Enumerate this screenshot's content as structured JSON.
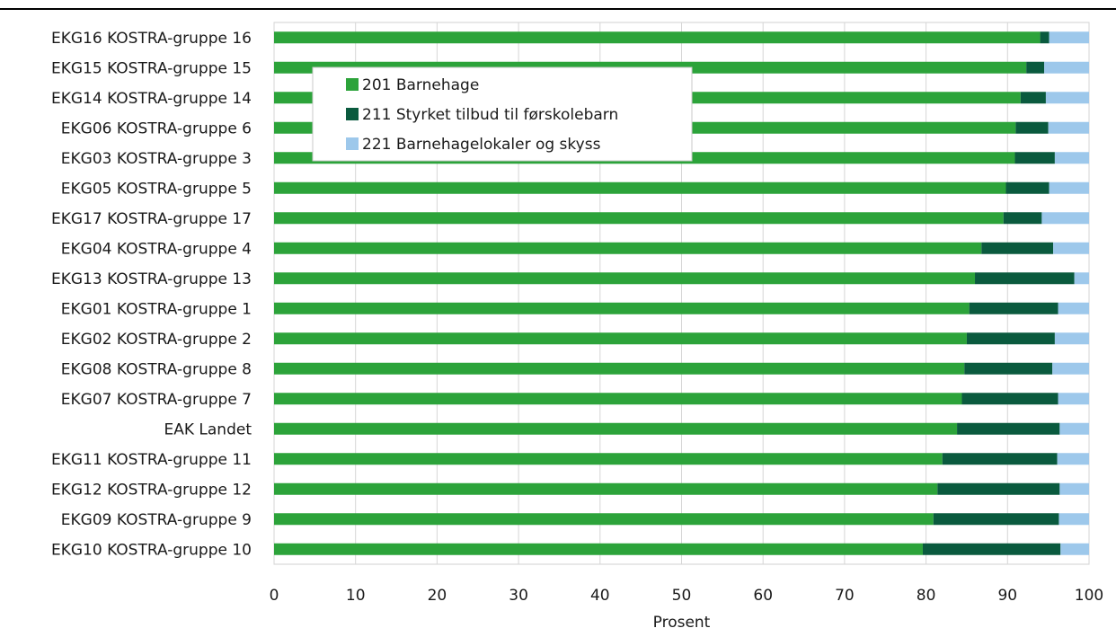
{
  "chart_data": {
    "type": "bar",
    "orientation": "horizontal",
    "stacked": true,
    "title": "",
    "xlabel": "Prosent",
    "ylabel": "",
    "xlim": [
      0,
      100
    ],
    "xticks": [
      0,
      10,
      20,
      30,
      40,
      50,
      60,
      70,
      80,
      90,
      100
    ],
    "grid": "vertical",
    "legend_position": "top-left",
    "categories": [
      "EKG16 KOSTRA-gruppe 16",
      "EKG15 KOSTRA-gruppe 15",
      "EKG14 KOSTRA-gruppe 14",
      "EKG06 KOSTRA-gruppe 6",
      "EKG03 KOSTRA-gruppe 3",
      "EKG05 KOSTRA-gruppe 5",
      "EKG17 KOSTRA-gruppe 17",
      "EKG04 KOSTRA-gruppe 4",
      "EKG13 KOSTRA-gruppe 13",
      "EKG01 KOSTRA-gruppe 1",
      "EKG02 KOSTRA-gruppe 2",
      "EKG08 KOSTRA-gruppe 8",
      "EKG07 KOSTRA-gruppe 7",
      "EAK Landet",
      "EKG11 KOSTRA-gruppe 11",
      "EKG12 KOSTRA-gruppe 12",
      "EKG09 KOSTRA-gruppe 9",
      "EKG10 KOSTRA-gruppe 10"
    ],
    "series": [
      {
        "name": "201 Barnehage",
        "color": "#2ca33a",
        "values": [
          94.0,
          92.3,
          91.6,
          91.0,
          90.9,
          89.8,
          89.5,
          86.8,
          86.0,
          85.3,
          85.0,
          84.7,
          84.4,
          83.8,
          82.0,
          81.4,
          80.9,
          79.6
        ]
      },
      {
        "name": "211 Styrket tilbud til førskolebarn",
        "color": "#0a5a3e",
        "values": [
          1.1,
          2.2,
          3.1,
          4.0,
          4.9,
          5.3,
          4.7,
          8.8,
          12.2,
          10.9,
          10.8,
          10.8,
          11.8,
          12.6,
          14.1,
          15.0,
          15.4,
          16.9
        ]
      },
      {
        "name": "221 Barnehagelokaler og skyss",
        "color": "#9dc8eb",
        "values": [
          4.9,
          5.5,
          5.3,
          5.0,
          4.2,
          4.9,
          5.8,
          4.4,
          1.8,
          3.8,
          4.2,
          4.5,
          3.8,
          3.6,
          3.9,
          3.6,
          3.7,
          3.5
        ]
      }
    ]
  }
}
